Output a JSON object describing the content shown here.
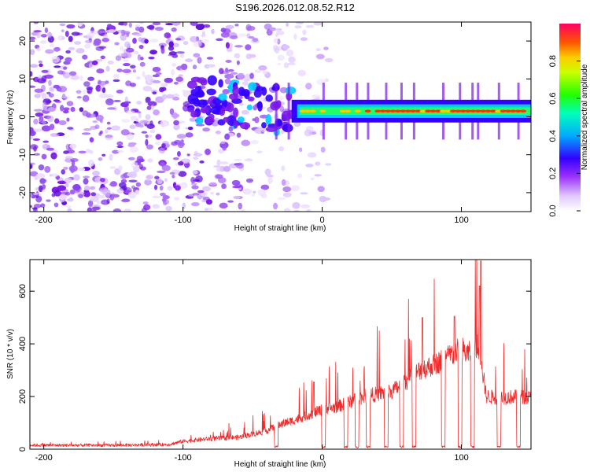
{
  "title": "S196.2026.012.08.52.R12",
  "colors": {
    "line": "#ee2a2a",
    "axis": "#000000",
    "background": "#ffffff"
  },
  "chart_data": [
    {
      "type": "heatmap",
      "xlabel": "Height of straight line (km)",
      "ylabel": "Frequency (Hz)",
      "xlim": [
        -210,
        150
      ],
      "ylim": [
        -25,
        25
      ],
      "xticks": [
        -200,
        -100,
        0,
        100
      ],
      "xtick_labels": [
        "-200",
        "-100",
        "0",
        "100"
      ],
      "yticks": [
        20,
        10,
        0,
        -10,
        -20
      ],
      "ytick_labels": [
        "20",
        "10",
        "0",
        "-10",
        "-20"
      ],
      "colorbar": {
        "label": "Normalized spectral amplitude",
        "range": [
          0.0,
          1.0
        ],
        "ticks": [
          0.0,
          0.2,
          0.4,
          0.6,
          0.8
        ],
        "tick_labels": [
          "0.0",
          "0.2",
          "0.4",
          "0.6",
          "0.8"
        ],
        "colormap": [
          "#ffffff",
          "#9d33ff",
          "#3300ff",
          "#00ccff",
          "#00ff33",
          "#ffff00",
          "#ff6600",
          "#ff0066"
        ]
      },
      "features": {
        "noise_region_x": [
          -210,
          -20
        ],
        "ridge_start_x": -22,
        "ridge_frequency_hz": 1.5
      }
    },
    {
      "type": "line",
      "xlabel": "Height of straight line (km)",
      "ylabel": "SNR (10 * v/v)",
      "xlim": [
        -210,
        150
      ],
      "ylim": [
        0,
        720
      ],
      "xticks": [
        -200,
        -100,
        0,
        100
      ],
      "xtick_labels": [
        "-200",
        "-100",
        "0",
        "100"
      ],
      "yticks": [
        0,
        200,
        400,
        600
      ],
      "ytick_labels": [
        "0",
        "200",
        "400",
        "600"
      ],
      "series": [
        {
          "name": "SNR",
          "x": [
            -210,
            -150,
            -110,
            -100,
            -80,
            -60,
            -40,
            -30,
            -20,
            -10,
            0,
            10,
            20,
            30,
            40,
            50,
            60,
            70,
            80,
            90,
            100,
            105,
            112,
            118,
            130,
            140,
            150
          ],
          "y": [
            15,
            15,
            18,
            30,
            40,
            45,
            70,
            95,
            110,
            130,
            150,
            160,
            180,
            200,
            210,
            220,
            255,
            300,
            320,
            350,
            380,
            360,
            395,
            200,
            195,
            200,
            195
          ],
          "dropouts_x": [
            -33,
            1,
            17,
            25,
            33,
            46,
            57,
            66,
            87,
            99,
            108,
            127,
            141
          ],
          "peaks": [
            {
              "x": 114,
              "y": 715
            },
            {
              "x": 113,
              "y": 620
            },
            {
              "x": -6,
              "y": 255
            },
            {
              "x": 72,
              "y": 500
            },
            {
              "x": 95,
              "y": 505
            }
          ]
        }
      ]
    }
  ]
}
